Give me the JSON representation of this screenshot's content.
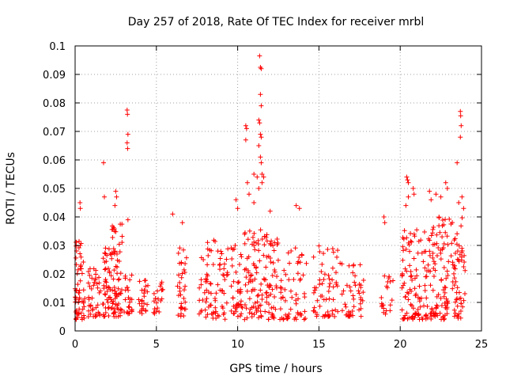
{
  "chart_data": {
    "type": "scatter",
    "title": "Day 257 of 2018, Rate Of TEC Index for receiver mrbl",
    "xlabel": "GPS time / hours",
    "ylabel": "ROTI / TECUs",
    "xlim": [
      0,
      25
    ],
    "ylim": [
      0,
      0.1
    ],
    "xticks": [
      0,
      5,
      10,
      15,
      20,
      25
    ],
    "yticks": [
      0,
      0.01,
      0.02,
      0.03,
      0.04,
      0.05,
      0.06,
      0.07,
      0.08,
      0.09,
      0.1
    ],
    "xtick_labels": [
      "0",
      "5",
      "10",
      "15",
      "20",
      "25"
    ],
    "ytick_labels": [
      "0",
      "0.01",
      "0.02",
      "0.03",
      "0.04",
      "0.05",
      "0.06",
      "0.07",
      "0.08",
      "0.09",
      "0.1"
    ],
    "grid": true,
    "marker": "+",
    "marker_color": "#ff0000",
    "legend": "none",
    "clusters": [
      {
        "x_range": [
          0.0,
          0.6
        ],
        "y_range": [
          0.004,
          0.032
        ],
        "count": 60
      },
      {
        "x_range": [
          0.8,
          1.6
        ],
        "y_range": [
          0.005,
          0.022
        ],
        "count": 40
      },
      {
        "x_range": [
          1.7,
          2.2
        ],
        "y_range": [
          0.005,
          0.03
        ],
        "count": 40
      },
      {
        "x_range": [
          2.2,
          2.9
        ],
        "y_range": [
          0.005,
          0.038
        ],
        "count": 70
      },
      {
        "x_range": [
          3.0,
          3.5
        ],
        "y_range": [
          0.006,
          0.02
        ],
        "count": 25
      },
      {
        "x_range": [
          3.9,
          4.5
        ],
        "y_range": [
          0.006,
          0.018
        ],
        "count": 25
      },
      {
        "x_range": [
          4.8,
          5.4
        ],
        "y_range": [
          0.006,
          0.02
        ],
        "count": 20
      },
      {
        "x_range": [
          6.3,
          6.9
        ],
        "y_range": [
          0.005,
          0.03
        ],
        "count": 35
      },
      {
        "x_range": [
          7.6,
          9.4
        ],
        "y_range": [
          0.004,
          0.032
        ],
        "count": 80
      },
      {
        "x_range": [
          9.6,
          10.3
        ],
        "y_range": [
          0.005,
          0.03
        ],
        "count": 40
      },
      {
        "x_range": [
          10.4,
          12.5
        ],
        "y_range": [
          0.004,
          0.036
        ],
        "count": 130
      },
      {
        "x_range": [
          12.6,
          14.3
        ],
        "y_range": [
          0.004,
          0.03
        ],
        "count": 60
      },
      {
        "x_range": [
          14.6,
          16.2
        ],
        "y_range": [
          0.005,
          0.03
        ],
        "count": 60
      },
      {
        "x_range": [
          16.3,
          17.8
        ],
        "y_range": [
          0.005,
          0.026
        ],
        "count": 45
      },
      {
        "x_range": [
          18.8,
          19.6
        ],
        "y_range": [
          0.005,
          0.02
        ],
        "count": 20
      },
      {
        "x_range": [
          20.1,
          22.0
        ],
        "y_range": [
          0.004,
          0.036
        ],
        "count": 120
      },
      {
        "x_range": [
          22.0,
          24.0
        ],
        "y_range": [
          0.004,
          0.04
        ],
        "count": 140
      }
    ],
    "outliers": [
      {
        "x": 1.75,
        "y": 0.059
      },
      {
        "x": 1.8,
        "y": 0.047
      },
      {
        "x": 2.5,
        "y": 0.049
      },
      {
        "x": 2.55,
        "y": 0.047
      },
      {
        "x": 2.45,
        "y": 0.044
      },
      {
        "x": 3.2,
        "y": 0.0775
      },
      {
        "x": 3.22,
        "y": 0.076
      },
      {
        "x": 3.25,
        "y": 0.069
      },
      {
        "x": 3.2,
        "y": 0.066
      },
      {
        "x": 3.23,
        "y": 0.064
      },
      {
        "x": 3.25,
        "y": 0.039
      },
      {
        "x": 0.3,
        "y": 0.045
      },
      {
        "x": 0.32,
        "y": 0.043
      },
      {
        "x": 6.0,
        "y": 0.041
      },
      {
        "x": 6.6,
        "y": 0.038
      },
      {
        "x": 9.9,
        "y": 0.046
      },
      {
        "x": 10.0,
        "y": 0.043
      },
      {
        "x": 10.5,
        "y": 0.072
      },
      {
        "x": 10.55,
        "y": 0.071
      },
      {
        "x": 10.5,
        "y": 0.067
      },
      {
        "x": 10.6,
        "y": 0.052
      },
      {
        "x": 10.7,
        "y": 0.048
      },
      {
        "x": 11.0,
        "y": 0.055
      },
      {
        "x": 11.2,
        "y": 0.054
      },
      {
        "x": 11.35,
        "y": 0.0965
      },
      {
        "x": 11.4,
        "y": 0.0925
      },
      {
        "x": 11.45,
        "y": 0.092
      },
      {
        "x": 11.4,
        "y": 0.083
      },
      {
        "x": 11.45,
        "y": 0.079
      },
      {
        "x": 11.3,
        "y": 0.074
      },
      {
        "x": 11.35,
        "y": 0.073
      },
      {
        "x": 11.4,
        "y": 0.069
      },
      {
        "x": 11.45,
        "y": 0.068
      },
      {
        "x": 11.3,
        "y": 0.065
      },
      {
        "x": 11.4,
        "y": 0.061
      },
      {
        "x": 11.45,
        "y": 0.059
      },
      {
        "x": 11.5,
        "y": 0.055
      },
      {
        "x": 11.6,
        "y": 0.054
      },
      {
        "x": 11.5,
        "y": 0.052
      },
      {
        "x": 11.3,
        "y": 0.05
      },
      {
        "x": 11.0,
        "y": 0.045
      },
      {
        "x": 12.0,
        "y": 0.042
      },
      {
        "x": 13.6,
        "y": 0.044
      },
      {
        "x": 13.8,
        "y": 0.043
      },
      {
        "x": 19.0,
        "y": 0.04
      },
      {
        "x": 19.05,
        "y": 0.038
      },
      {
        "x": 20.4,
        "y": 0.054
      },
      {
        "x": 20.45,
        "y": 0.053
      },
      {
        "x": 20.5,
        "y": 0.052
      },
      {
        "x": 20.5,
        "y": 0.047
      },
      {
        "x": 20.35,
        "y": 0.044
      },
      {
        "x": 20.8,
        "y": 0.05
      },
      {
        "x": 20.85,
        "y": 0.048
      },
      {
        "x": 21.8,
        "y": 0.049
      },
      {
        "x": 21.9,
        "y": 0.046
      },
      {
        "x": 22.2,
        "y": 0.048
      },
      {
        "x": 22.5,
        "y": 0.047
      },
      {
        "x": 22.8,
        "y": 0.052
      },
      {
        "x": 22.9,
        "y": 0.05
      },
      {
        "x": 23.5,
        "y": 0.059
      },
      {
        "x": 23.7,
        "y": 0.077
      },
      {
        "x": 23.72,
        "y": 0.0755
      },
      {
        "x": 23.75,
        "y": 0.072
      },
      {
        "x": 23.7,
        "y": 0.068
      },
      {
        "x": 23.8,
        "y": 0.047
      },
      {
        "x": 23.9,
        "y": 0.043
      },
      {
        "x": 23.6,
        "y": 0.045
      }
    ]
  }
}
